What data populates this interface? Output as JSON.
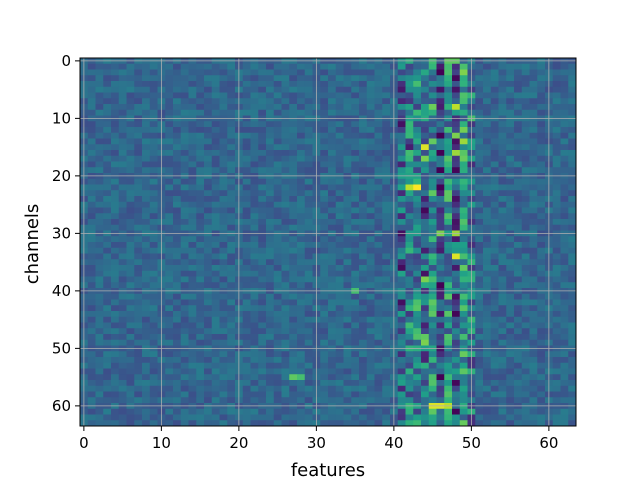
{
  "chart_data": {
    "type": "heatmap",
    "title": "",
    "xlabel": "features",
    "ylabel": "channels",
    "n_cols": 64,
    "n_rows": 64,
    "xlim": [
      -0.5,
      63.5
    ],
    "ylim": [
      63.5,
      -0.5
    ],
    "x_ticks": [
      0,
      10,
      20,
      30,
      40,
      50,
      60
    ],
    "y_ticks": [
      0,
      10,
      20,
      30,
      40,
      50,
      60
    ],
    "x_tick_labels": [
      "0",
      "10",
      "20",
      "30",
      "40",
      "50",
      "60"
    ],
    "y_tick_labels": [
      "0",
      "10",
      "20",
      "30",
      "40",
      "50",
      "60"
    ],
    "grid": true,
    "colormap": "viridis",
    "value_range": [
      0,
      1
    ],
    "base_level": 0.33,
    "stripe_columns": {
      "41": 0.3,
      "42": 0.44,
      "43": 0.46,
      "44": 0.36,
      "45": 0.5,
      "46": 0.18,
      "47": 0.5,
      "48": 0.28,
      "49": 0.54,
      "50": 0.4
    },
    "highlights": [
      {
        "row": 0,
        "col": 47,
        "value": 0.75
      },
      {
        "row": 0,
        "col": 48,
        "value": 0.75
      },
      {
        "row": 8,
        "col": 48,
        "value": 0.9
      },
      {
        "row": 10,
        "col": 50,
        "value": 0.7
      },
      {
        "row": 13,
        "col": 48,
        "value": 0.8
      },
      {
        "row": 14,
        "col": 49,
        "value": 0.85
      },
      {
        "row": 15,
        "col": 44,
        "value": 0.95
      },
      {
        "row": 16,
        "col": 48,
        "value": 0.85
      },
      {
        "row": 17,
        "col": 44,
        "value": 0.8
      },
      {
        "row": 22,
        "col": 42,
        "value": 0.9
      },
      {
        "row": 22,
        "col": 43,
        "value": 1.0
      },
      {
        "row": 30,
        "col": 46,
        "value": 0.8
      },
      {
        "row": 30,
        "col": 48,
        "value": 0.85
      },
      {
        "row": 34,
        "col": 48,
        "value": 0.95
      },
      {
        "row": 38,
        "col": 44,
        "value": 0.8
      },
      {
        "row": 40,
        "col": 35,
        "value": 0.7
      },
      {
        "row": 48,
        "col": 44,
        "value": 0.75
      },
      {
        "row": 49,
        "col": 44,
        "value": 0.8
      },
      {
        "row": 55,
        "col": 27,
        "value": 0.75
      },
      {
        "row": 55,
        "col": 28,
        "value": 0.7
      },
      {
        "row": 60,
        "col": 45,
        "value": 0.95
      },
      {
        "row": 60,
        "col": 46,
        "value": 0.95
      },
      {
        "row": 60,
        "col": 47,
        "value": 0.9
      },
      {
        "row": 26,
        "col": 44,
        "value": 0.02
      },
      {
        "row": 28,
        "col": 48,
        "value": 0.05
      },
      {
        "row": 37,
        "col": 44,
        "value": 0.05
      },
      {
        "row": 15,
        "col": 42,
        "value": 0.08
      },
      {
        "row": 8,
        "col": 46,
        "value": 0.08
      }
    ]
  }
}
